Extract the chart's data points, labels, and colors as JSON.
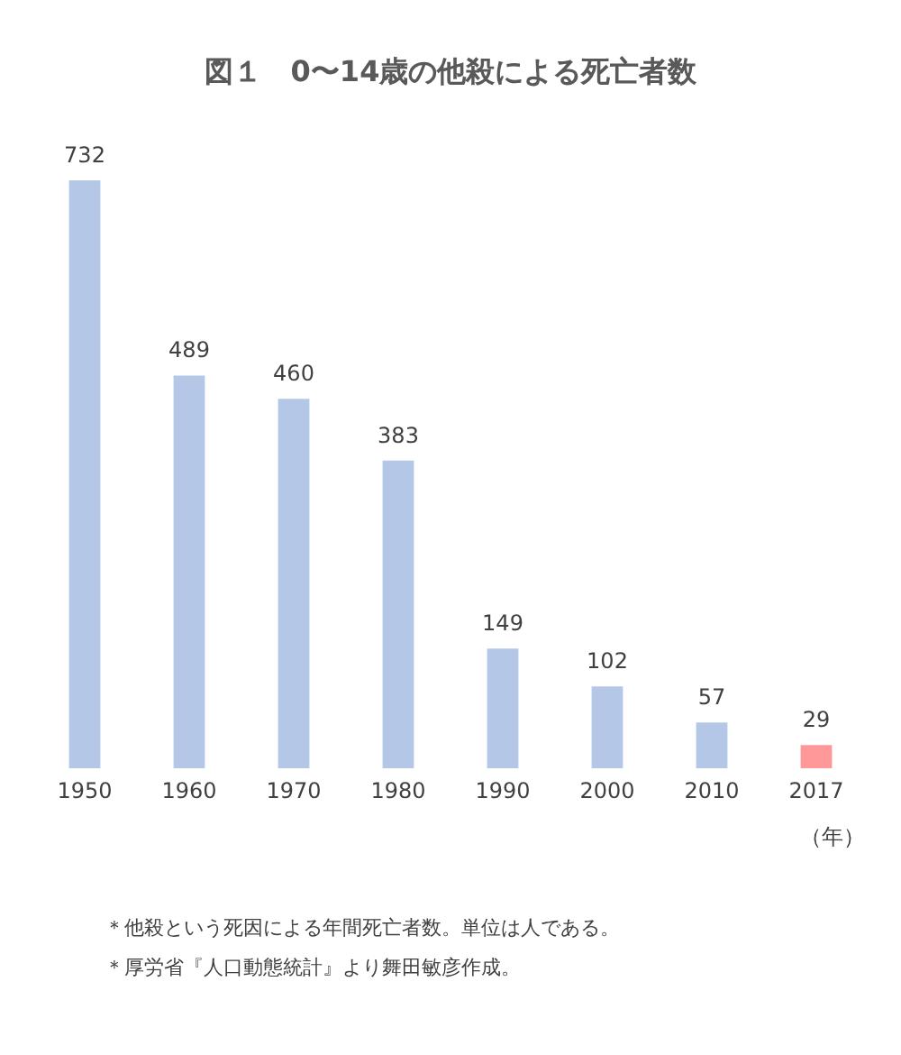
{
  "chart_data": {
    "type": "bar",
    "title": "図１　0〜14歳の他殺による死亡者数",
    "xlabel": "（年）",
    "categories": [
      "1950",
      "1960",
      "1970",
      "1980",
      "1990",
      "2000",
      "2010",
      "2017"
    ],
    "values": [
      732,
      489,
      460,
      383,
      149,
      102,
      57,
      29
    ],
    "colors": [
      "#b4c7e7",
      "#b4c7e7",
      "#b4c7e7",
      "#b4c7e7",
      "#b4c7e7",
      "#b4c7e7",
      "#b4c7e7",
      "#ff9999"
    ],
    "data_labels": true,
    "grid": false,
    "legend": false,
    "annotations": [
      "＊他殺という死因による年間死亡者数。単位は人である。",
      "＊厚労省『人口動態統計』より舞田敏彦作成。"
    ]
  }
}
